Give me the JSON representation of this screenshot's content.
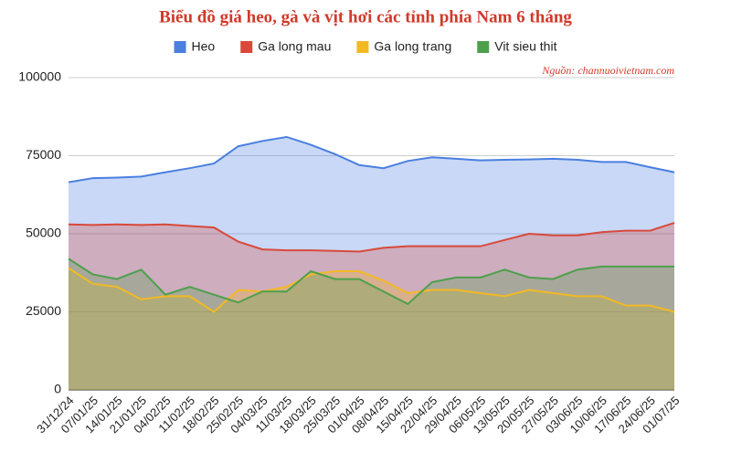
{
  "chart_data": {
    "type": "area",
    "title": "Biểu đồ giá heo, gà và vịt hơi các tỉnh phía Nam 6 tháng",
    "annotation": "Nguồn: channuoivietnam.com",
    "categories": [
      "31/12/24",
      "07/01/25",
      "14/01/25",
      "21/01/25",
      "04/02/25",
      "11/02/25",
      "18/02/25",
      "25/02/25",
      "04/03/25",
      "11/03/25",
      "18/03/25",
      "25/03/25",
      "01/04/25",
      "08/04/25",
      "15/04/25",
      "22/04/25",
      "29/04/25",
      "06/05/25",
      "13/05/25",
      "20/05/25",
      "27/05/25",
      "03/06/25",
      "10/06/25",
      "17/06/25",
      "24/06/25",
      "01/07/25"
    ],
    "series": [
      {
        "name": "Heo",
        "color": "#4a7fe0",
        "values": [
          66500,
          67800,
          68000,
          68300,
          69700,
          71000,
          72500,
          78000,
          79700,
          81000,
          78500,
          75500,
          72000,
          71000,
          73300,
          74500,
          74000,
          73500,
          73700,
          73800,
          74000,
          73700,
          73000,
          73000,
          71300,
          69700
        ]
      },
      {
        "name": "Ga long mau",
        "color": "#d9493a",
        "values": [
          53000,
          52800,
          53000,
          52800,
          53000,
          52500,
          52000,
          47500,
          45000,
          44700,
          44700,
          44500,
          44300,
          45500,
          46000,
          46000,
          46000,
          46000,
          48000,
          50000,
          49500,
          49500,
          50500,
          51000,
          51000,
          53500
        ]
      },
      {
        "name": "Ga long trang",
        "color": "#f3b924",
        "values": [
          39000,
          34000,
          33000,
          29000,
          30000,
          30000,
          25000,
          32000,
          31500,
          33000,
          37000,
          38000,
          38000,
          35000,
          31000,
          32000,
          32000,
          31000,
          30000,
          32000,
          31000,
          30000,
          30000,
          27000,
          27000,
          25000
        ]
      },
      {
        "name": "Vit sieu thit",
        "color": "#4e9f4c",
        "values": [
          42000,
          37000,
          35500,
          38500,
          30500,
          33000,
          30500,
          28000,
          31500,
          31500,
          38000,
          35500,
          35500,
          31500,
          27500,
          34500,
          36000,
          36000,
          38500,
          36000,
          35500,
          38500,
          39500,
          39500,
          39500,
          39500
        ]
      }
    ],
    "ylim": [
      0,
      100000
    ],
    "yticks": [
      0,
      25000,
      50000,
      75000,
      100000
    ],
    "grid": true,
    "legend": "top"
  }
}
